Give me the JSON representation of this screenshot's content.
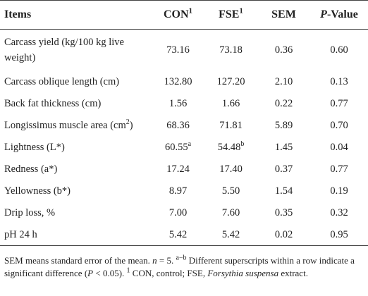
{
  "table": {
    "header": [
      {
        "text": "Items"
      },
      {
        "text": "CON",
        "sup": "1"
      },
      {
        "text": "FSE",
        "sup": "1"
      },
      {
        "text": "SEM"
      },
      {
        "italic": "P",
        "text": "-Value"
      }
    ],
    "rows": [
      [
        {
          "text": "Carcass yield (kg/100 kg live weight)"
        },
        {
          "text": "73.16"
        },
        {
          "text": "73.18"
        },
        {
          "text": "0.36"
        },
        {
          "text": "0.60"
        }
      ],
      [
        {
          "text": "Carcass oblique length (cm)"
        },
        {
          "text": "132.80"
        },
        {
          "text": "127.20"
        },
        {
          "text": "2.10"
        },
        {
          "text": "0.13"
        }
      ],
      [
        {
          "text": "Back fat thickness (cm)"
        },
        {
          "text": "1.56"
        },
        {
          "text": "1.66"
        },
        {
          "text": "0.22"
        },
        {
          "text": "0.77"
        }
      ],
      [
        {
          "text": "Longissimus muscle area (cm",
          "sup": "2",
          "after": ")"
        },
        {
          "text": "68.36"
        },
        {
          "text": "71.81"
        },
        {
          "text": "5.89"
        },
        {
          "text": "0.70"
        }
      ],
      [
        {
          "text": "Lightness (L*)"
        },
        {
          "text": "60.55",
          "sup": "a"
        },
        {
          "text": "54.48",
          "sup": "b"
        },
        {
          "text": "1.45"
        },
        {
          "text": "0.04"
        }
      ],
      [
        {
          "text": "Redness (a*)"
        },
        {
          "text": "17.24"
        },
        {
          "text": "17.40"
        },
        {
          "text": "0.37"
        },
        {
          "text": "0.77"
        }
      ],
      [
        {
          "text": "Yellowness (b*)"
        },
        {
          "text": "8.97"
        },
        {
          "text": "5.50"
        },
        {
          "text": "1.54"
        },
        {
          "text": "0.19"
        }
      ],
      [
        {
          "text": "Drip loss, %"
        },
        {
          "text": "7.00"
        },
        {
          "text": "7.60"
        },
        {
          "text": "0.35"
        },
        {
          "text": "0.32"
        }
      ],
      [
        {
          "text": "pH 24 h"
        },
        {
          "text": "5.42"
        },
        {
          "text": "5.42"
        },
        {
          "text": "0.02"
        },
        {
          "text": "0.95"
        }
      ]
    ]
  },
  "footnote": [
    {
      "text": "SEM means standard error of the mean. "
    },
    {
      "text": "n",
      "style": "italic"
    },
    {
      "text": " = 5. "
    },
    {
      "text": "a−b",
      "style": "sup"
    },
    {
      "text": " Different superscripts within a row indicate a significant difference ("
    },
    {
      "text": "P",
      "style": "italic"
    },
    {
      "text": " < 0.05). "
    },
    {
      "text": "1",
      "style": "sup"
    },
    {
      "text": " CON, control; FSE, "
    },
    {
      "text": "Forsythia suspensa",
      "style": "italic"
    },
    {
      "text": " extract."
    }
  ]
}
